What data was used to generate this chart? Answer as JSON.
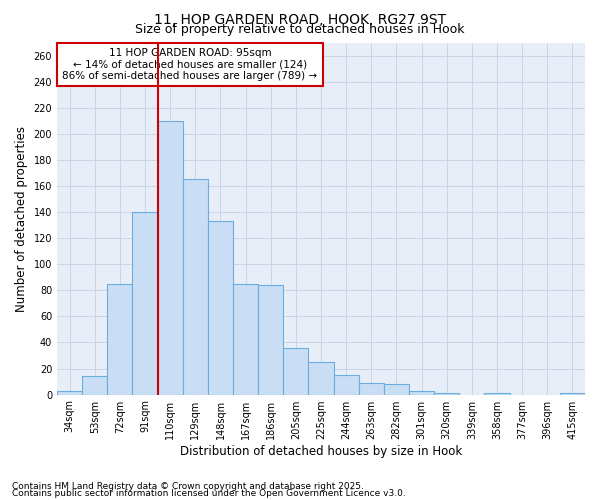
{
  "title1": "11, HOP GARDEN ROAD, HOOK, RG27 9ST",
  "title2": "Size of property relative to detached houses in Hook",
  "xlabel": "Distribution of detached houses by size in Hook",
  "ylabel": "Number of detached properties",
  "categories": [
    "34sqm",
    "53sqm",
    "72sqm",
    "91sqm",
    "110sqm",
    "129sqm",
    "148sqm",
    "167sqm",
    "186sqm",
    "205sqm",
    "225sqm",
    "244sqm",
    "263sqm",
    "282sqm",
    "301sqm",
    "320sqm",
    "339sqm",
    "358sqm",
    "377sqm",
    "396sqm",
    "415sqm"
  ],
  "values": [
    3,
    14,
    85,
    140,
    210,
    165,
    133,
    85,
    84,
    36,
    25,
    15,
    9,
    8,
    3,
    1,
    0,
    1,
    0,
    0,
    1
  ],
  "bar_color": "#c9ddf5",
  "bar_edge_color": "#6aaee0",
  "vline_x": 3.5,
  "vline_color": "#cc0000",
  "annotation_line1": "11 HOP GARDEN ROAD: 95sqm",
  "annotation_line2": "← 14% of detached houses are smaller (124)",
  "annotation_line3": "86% of semi-detached houses are larger (789) →",
  "annotation_box_color": "#ffffff",
  "annotation_box_edge": "#cc0000",
  "ylim": [
    0,
    270
  ],
  "yticks": [
    0,
    20,
    40,
    60,
    80,
    100,
    120,
    140,
    160,
    180,
    200,
    220,
    240,
    260
  ],
  "footer1": "Contains HM Land Registry data © Crown copyright and database right 2025.",
  "footer2": "Contains public sector information licensed under the Open Government Licence v3.0.",
  "fig_bg_color": "#ffffff",
  "plot_bg_color": "#e8eef8",
  "grid_color": "#c8d4e8",
  "title_fontsize": 10,
  "subtitle_fontsize": 9,
  "tick_fontsize": 7,
  "label_fontsize": 8.5,
  "footer_fontsize": 6.5,
  "ann_fontsize": 7.5
}
